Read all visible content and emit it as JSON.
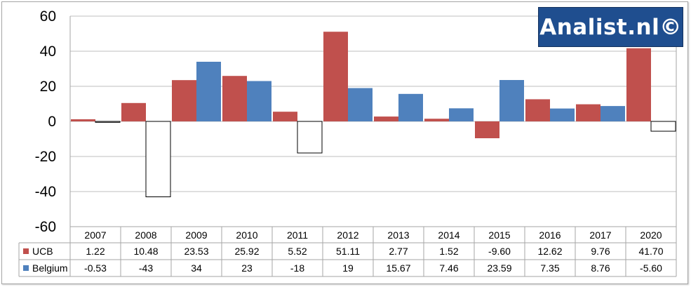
{
  "chart_data": {
    "type": "bar",
    "categories": [
      "2007",
      "2008",
      "2009",
      "2010",
      "2011",
      "2012",
      "2013",
      "2014",
      "2015",
      "2016",
      "2017",
      "2020"
    ],
    "series": [
      {
        "name": "UCB",
        "color": "#c0504d",
        "values": [
          1.22,
          10.48,
          23.53,
          25.92,
          5.52,
          51.11,
          2.77,
          1.52,
          -9.6,
          12.62,
          9.76,
          41.7
        ],
        "labels": [
          "1.22",
          "10.48",
          "23.53",
          "25.92",
          "5.52",
          "51.11",
          "2.77",
          "1.52",
          "-9.60",
          "12.62",
          "9.76",
          "41.70"
        ]
      },
      {
        "name": "Belgium",
        "color": "#4f81bd",
        "negative_fill": "#ffffff",
        "values": [
          -0.53,
          -43,
          34,
          23,
          -18,
          19,
          15.67,
          7.46,
          23.59,
          7.35,
          8.76,
          -5.6
        ],
        "labels": [
          "-0.53",
          "-43",
          "34",
          "23",
          "-18",
          "19",
          "15.67",
          "7.46",
          "23.59",
          "7.35",
          "8.76",
          "-5.60"
        ]
      }
    ],
    "ylim": [
      -60,
      60
    ],
    "yticks": [
      "-60",
      "-40",
      "-20",
      "0",
      "20",
      "40",
      "60"
    ],
    "grid": true,
    "legend": "data-table-bottom"
  },
  "watermark": {
    "text": "Analist.nl©",
    "bg": "#1f4e8f"
  }
}
